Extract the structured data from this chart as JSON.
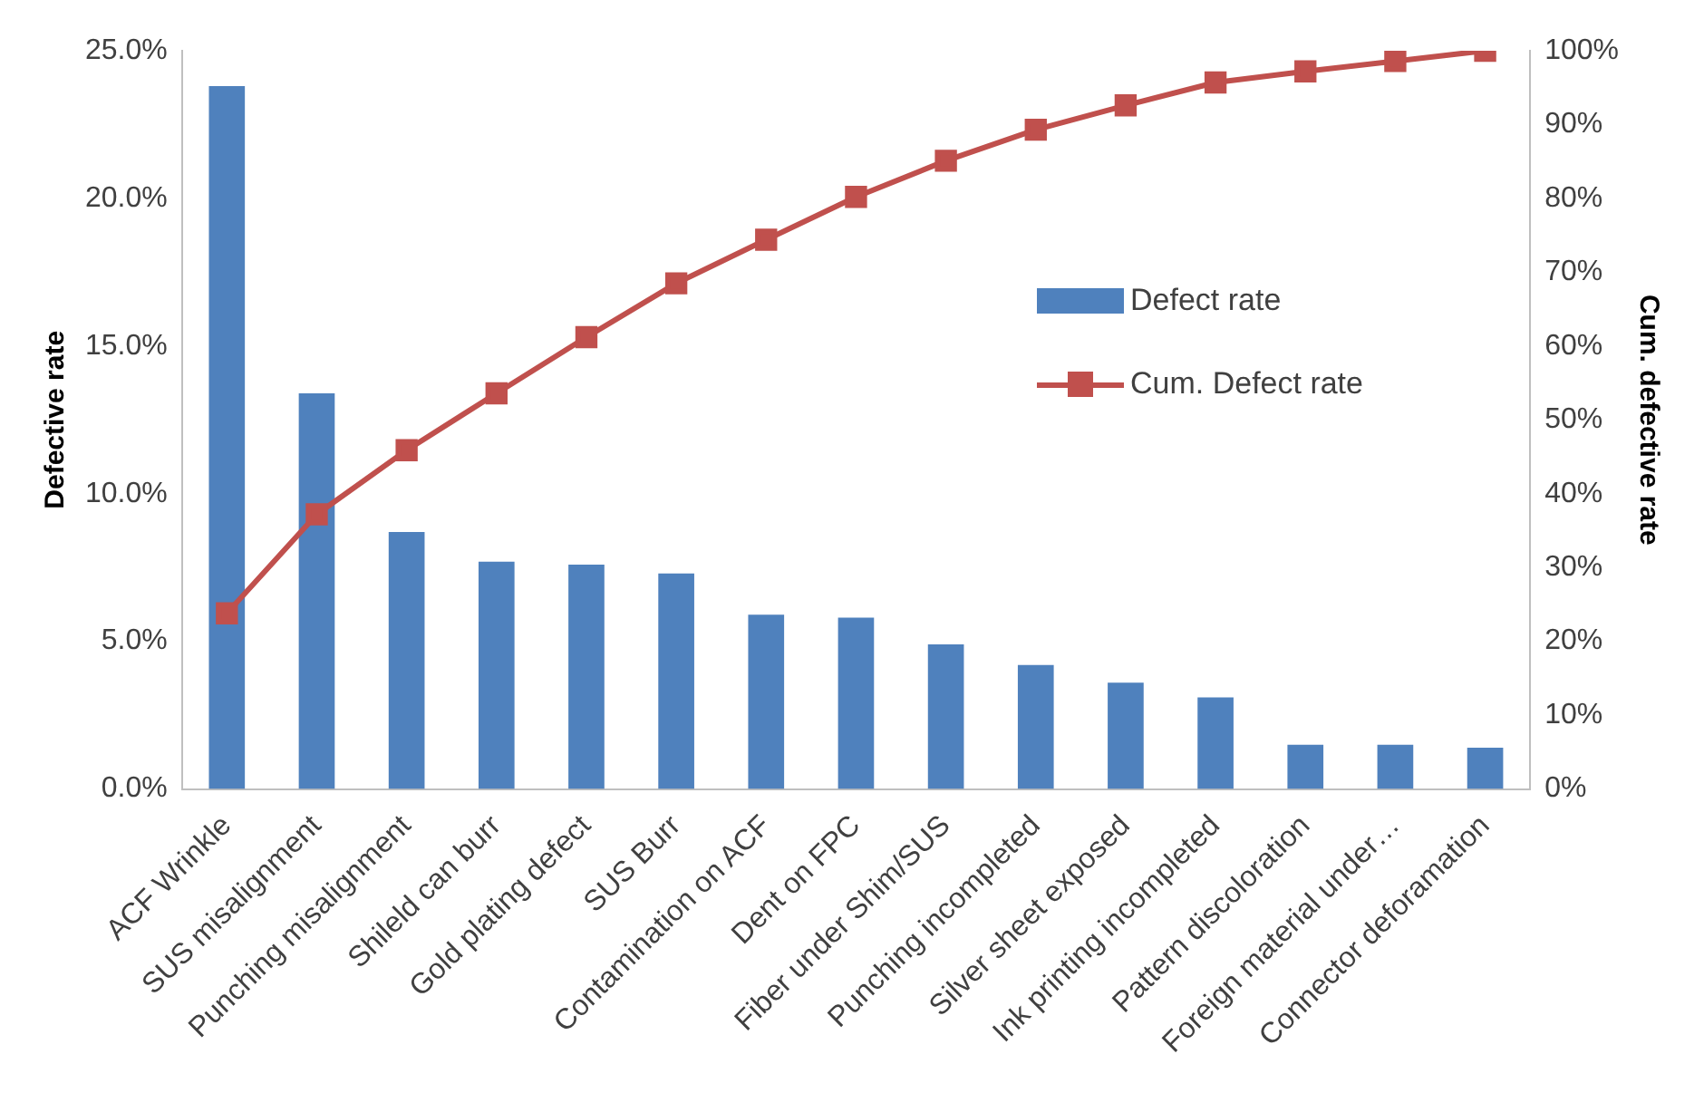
{
  "chart_data": {
    "type": "bar",
    "categories": [
      "ACF Wrinkle",
      "SUS misalignment",
      "Punching misalignment",
      "Shileld can burr",
      "Gold plating defect",
      "SUS Burr",
      "Contamination on ACF",
      "Dent on FPC",
      "Fiber under Shim/SUS",
      "Punching incompleted",
      "Silver sheet exposed",
      "Ink printing incompleted",
      "Pattern discoloration",
      "Foreign material under…",
      "Connector deforamation"
    ],
    "series": [
      {
        "name": "Defect rate",
        "color": "#4f81bd",
        "values": [
          23.8,
          13.4,
          8.7,
          7.7,
          7.6,
          7.3,
          5.9,
          5.8,
          4.9,
          4.2,
          3.6,
          3.1,
          1.5,
          1.5,
          1.4
        ]
      },
      {
        "name": "Cum. Defect rate",
        "type": "line",
        "axis": "y2",
        "color": "#c0504d",
        "marker": "square",
        "values": [
          23.8,
          37.2,
          45.9,
          53.6,
          61.2,
          68.5,
          74.4,
          80.2,
          85.1,
          89.3,
          92.6,
          95.7,
          97.2,
          98.6,
          100
        ]
      }
    ],
    "ylabel": "Defective rate",
    "y2label": "Cum. defective rate",
    "ylim": [
      0,
      25
    ],
    "yticks": [
      {
        "value": 0,
        "label": "0.0%"
      },
      {
        "value": 5,
        "label": "5.0%"
      },
      {
        "value": 10,
        "label": "10.0%"
      },
      {
        "value": 15,
        "label": "15.0%"
      },
      {
        "value": 20,
        "label": "20.0%"
      },
      {
        "value": 25,
        "label": "25.0%"
      }
    ],
    "y2lim": [
      0,
      100
    ],
    "y2ticks": [
      {
        "value": 0,
        "label": "0%"
      },
      {
        "value": 10,
        "label": "10%"
      },
      {
        "value": 20,
        "label": "20%"
      },
      {
        "value": 30,
        "label": "30%"
      },
      {
        "value": 40,
        "label": "40%"
      },
      {
        "value": 50,
        "label": "50%"
      },
      {
        "value": 60,
        "label": "60%"
      },
      {
        "value": 70,
        "label": "70%"
      },
      {
        "value": 80,
        "label": "80%"
      },
      {
        "value": 90,
        "label": "90%"
      },
      {
        "value": 100,
        "label": "100%"
      }
    ],
    "grid": false,
    "legend": "right"
  }
}
